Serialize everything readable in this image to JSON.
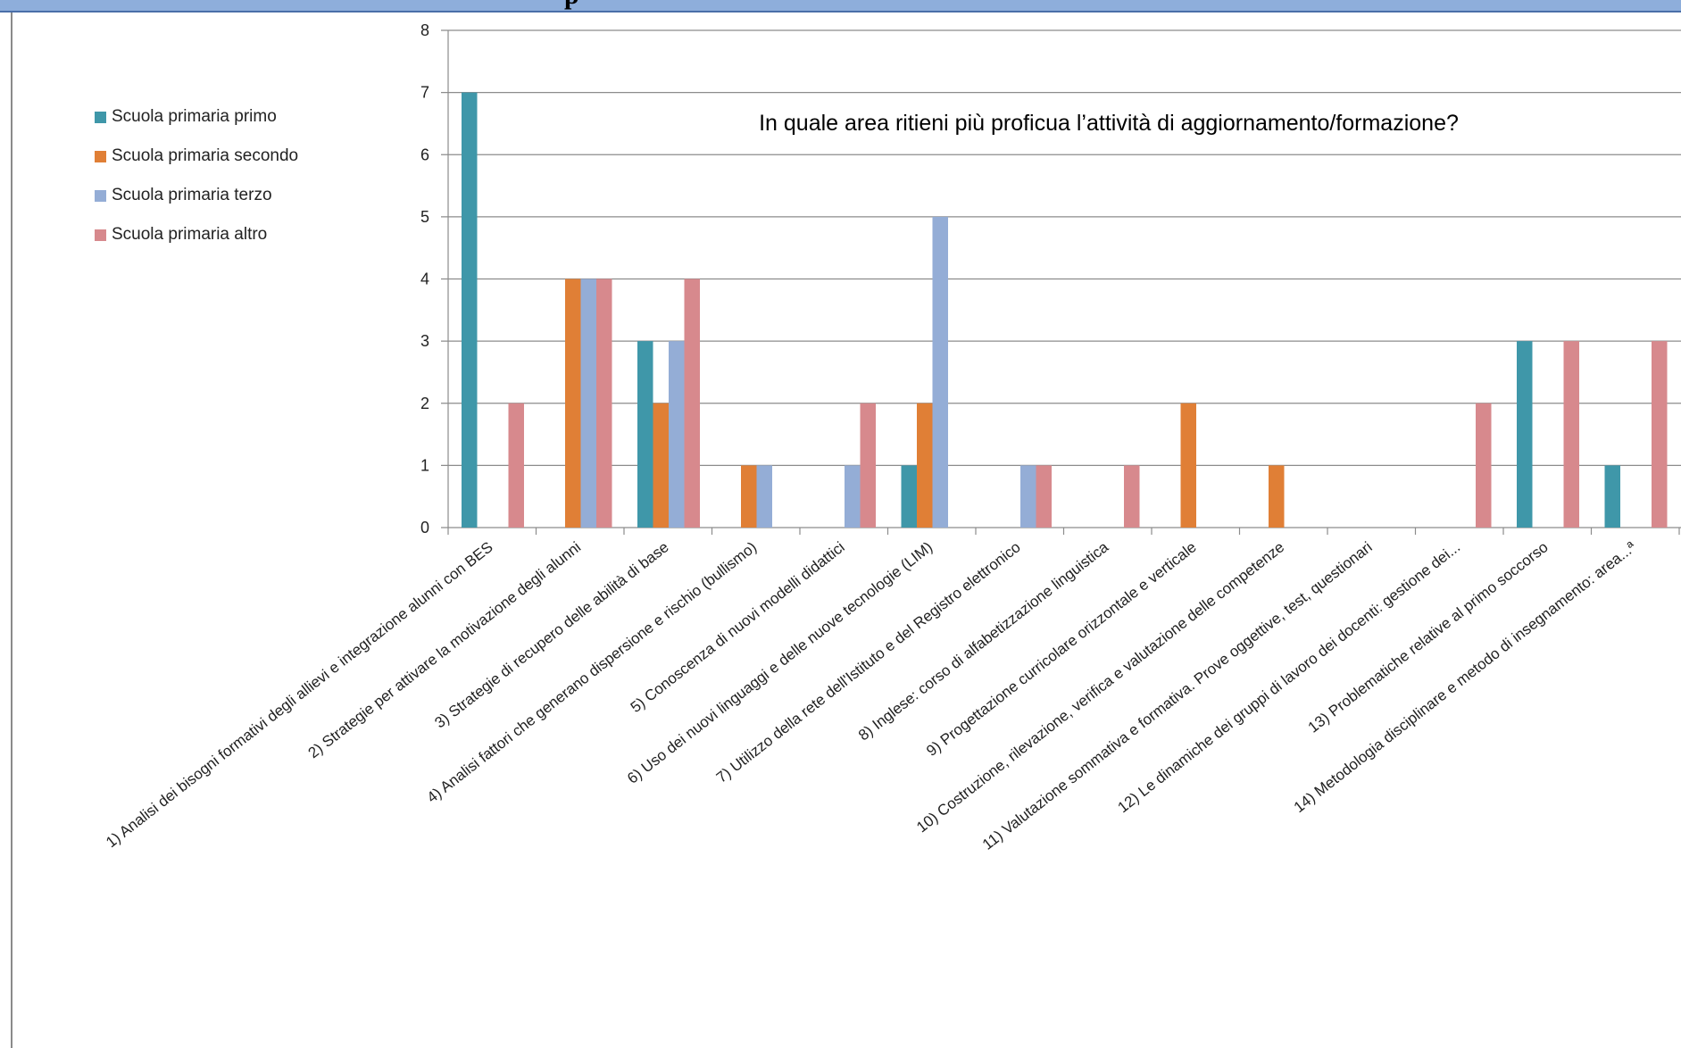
{
  "page": {
    "top_fragment": "p"
  },
  "chart_data": {
    "type": "bar",
    "title": "In quale area ritieni più proficua l’attività di aggiornamento/formazione?",
    "xlabel": "",
    "ylabel": "",
    "ylim": [
      0,
      8
    ],
    "yticks": [
      0,
      1,
      2,
      3,
      4,
      5,
      6,
      7,
      8
    ],
    "grid": true,
    "legend_position": "left",
    "categories": [
      "1) Analisi dei bisogni formativi degli allievi e integrazione alunni con BES",
      "2) Strategie per attivare la motivazione degli alunni",
      "3) Strategie di recupero delle abilità di base",
      "4) Analisi fattori che generano dispersione e rischio (bullismo)",
      "5) Conoscenza di nuovi modelli didattici",
      "6) Uso dei nuovi linguaggi e delle nuove tecnologie (LIM)",
      "7) Utilizzo della rete dell'Istituto e del Registro elettronico",
      "8) Inglese: corso di alfabetizzazione linguistica",
      "9) Progettazione curricolare orizzontale e verticale",
      "10) Costruzione, rilevazione, verifica e valutazione delle competenze",
      "11) Valutazione sommativa e formativa. Prove oggettive, test, questionari",
      "12) Le dinamiche dei gruppi di lavoro dei docenti: gestione dei...",
      "13) Problematiche relative al primo soccorso",
      "14) Metodologia disciplinare e metodo di insegnamento: area...ª"
    ],
    "series": [
      {
        "name": "Scuola primaria primo",
        "color": "#3f97a9",
        "values": [
          7,
          0,
          3,
          0,
          0,
          1,
          0,
          0,
          0,
          0,
          0,
          0,
          3,
          1
        ]
      },
      {
        "name": "Scuola primaria secondo",
        "color": "#e07f36",
        "values": [
          0,
          4,
          2,
          1,
          0,
          2,
          0,
          0,
          2,
          1,
          0,
          0,
          0,
          0
        ]
      },
      {
        "name": "Scuola primaria terzo",
        "color": "#94add6",
        "values": [
          0,
          4,
          3,
          1,
          1,
          5,
          1,
          0,
          0,
          0,
          0,
          0,
          0,
          0
        ]
      },
      {
        "name": "Scuola primaria altro",
        "color": "#d7898d",
        "values": [
          2,
          4,
          4,
          0,
          2,
          0,
          1,
          1,
          0,
          0,
          0,
          2,
          3,
          3
        ]
      }
    ]
  }
}
